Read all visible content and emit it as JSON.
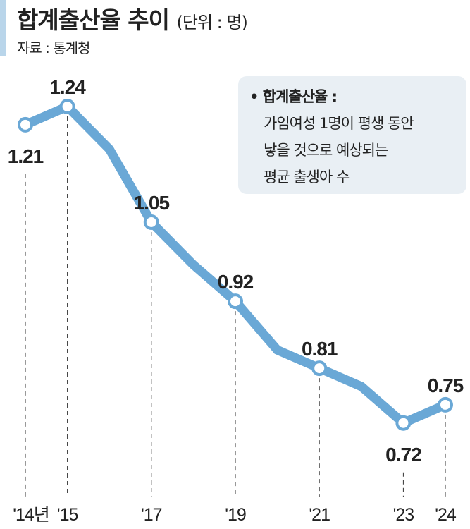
{
  "chart_data": {
    "type": "line",
    "title": "합계출산율 추이",
    "unit": "(단위 : 명)",
    "source": "자료 : 통계청",
    "x": [
      2014,
      2015,
      2016,
      2017,
      2018,
      2019,
      2020,
      2021,
      2022,
      2023,
      2024
    ],
    "values": [
      1.21,
      1.24,
      1.17,
      1.05,
      0.98,
      0.92,
      0.84,
      0.81,
      0.78,
      0.72,
      0.75
    ],
    "labeled_points": [
      {
        "x": 2014,
        "label": "1.21",
        "pos": "below"
      },
      {
        "x": 2015,
        "label": "1.24",
        "pos": "above"
      },
      {
        "x": 2017,
        "label": "1.05",
        "pos": "above"
      },
      {
        "x": 2019,
        "label": "0.92",
        "pos": "above"
      },
      {
        "x": 2021,
        "label": "0.81",
        "pos": "above"
      },
      {
        "x": 2023,
        "label": "0.72",
        "pos": "below"
      },
      {
        "x": 2024,
        "label": "0.75",
        "pos": "above"
      }
    ],
    "tick_labels": [
      {
        "x": 2014,
        "label": "'14년"
      },
      {
        "x": 2015,
        "label": "'15"
      },
      {
        "x": 2017,
        "label": "'17"
      },
      {
        "x": 2019,
        "label": "'19"
      },
      {
        "x": 2021,
        "label": "'21"
      },
      {
        "x": 2023,
        "label": "'23"
      },
      {
        "x": 2024,
        "label": "'24"
      }
    ],
    "line_color": "#6aa8d6",
    "grid": false,
    "legend": "none"
  },
  "note": {
    "heading": "• 합계출산율 :",
    "lines": [
      "가임여성 1명이 평생 동안",
      "낳을 것으로 예상되는",
      "평균 출생아 수"
    ]
  },
  "colors": {
    "accent_bar": "#b9d5ea",
    "note_bg": "#e9eff4"
  }
}
